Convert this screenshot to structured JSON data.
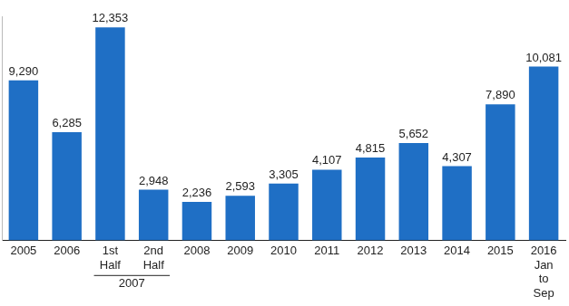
{
  "chart_data": {
    "type": "bar",
    "categories": [
      "2005",
      "2006",
      "1st Half",
      "2nd Half",
      "2008",
      "2009",
      "2010",
      "2011",
      "2012",
      "2013",
      "2014",
      "2015",
      "2016 Jan to Sep"
    ],
    "category_groups": [
      {
        "label": "2007",
        "categories": [
          "1st Half",
          "2nd Half"
        ]
      }
    ],
    "values": [
      9290,
      6285,
      12353,
      2948,
      2236,
      2593,
      3305,
      4107,
      4815,
      5652,
      4307,
      7890,
      10081
    ],
    "value_labels": [
      "9,290",
      "6,285",
      "12,353",
      "2,948",
      "2,236",
      "2,593",
      "3,305",
      "4,107",
      "4,815",
      "5,652",
      "4,307",
      "7,890",
      "10,081"
    ],
    "data_labels": true,
    "color": "#1f6fc5",
    "ylim": [
      0,
      13000
    ],
    "grid": false,
    "tick_labels": "x"
  }
}
